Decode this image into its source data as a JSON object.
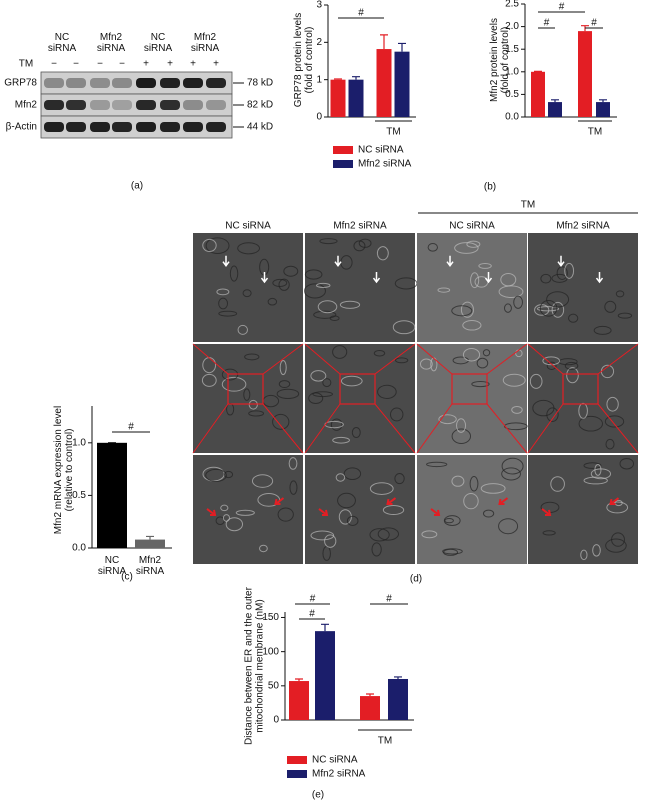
{
  "figure": {
    "panel_labels": [
      "(a)",
      "(b)",
      "(c)",
      "(d)",
      "(e)"
    ]
  },
  "blot": {
    "lanes": [
      "NC siRNA",
      "Mfn2 siRNA",
      "NC siRNA",
      "Mfn2 siRNA"
    ],
    "treatment_label": "TM",
    "treatment": [
      "−",
      "−",
      "−",
      "−",
      "+",
      "+",
      "+",
      "+"
    ],
    "rows": [
      "GRP78",
      "Mfn2",
      "β-Actin"
    ],
    "sizes": [
      "78 kD",
      "82 kD",
      "44 kD"
    ]
  },
  "em": {
    "columns": [
      "NC siRNA",
      "Mfn2 siRNA",
      "NC siRNA",
      "Mfn2 siRNA"
    ],
    "group_label": "TM"
  },
  "chart_data": [
    {
      "type": "bar",
      "ylabel": "GRP78 protein levels (fold of control)",
      "ylim": [
        0,
        3
      ],
      "yticks": [
        0,
        1,
        2,
        3
      ],
      "categories": [
        null,
        "TM"
      ],
      "series": [
        {
          "name": "NC siRNA",
          "color": "#e31e24",
          "values": [
            1.0,
            1.82
          ],
          "errors": [
            0.02,
            0.38
          ]
        },
        {
          "name": "Mfn2 siRNA",
          "color": "#1b1e6b",
          "values": [
            1.0,
            1.75
          ],
          "errors": [
            0.08,
            0.22
          ]
        }
      ],
      "annotations": [
        "#"
      ]
    },
    {
      "type": "bar",
      "ylabel": "Mfn2 protein levels (fold of control)",
      "ylim": [
        0,
        2.5
      ],
      "yticks": [
        {
          "value": 0,
          "label": "0.0"
        },
        0.5,
        {
          "value": 1,
          "label": "1.0"
        },
        1.5,
        {
          "value": 2,
          "label": "2.0"
        },
        2.5
      ],
      "categories": [
        null,
        "TM"
      ],
      "series": [
        {
          "color": "#e31e24",
          "values": [
            1.0,
            1.9
          ],
          "errors": [
            0.01,
            0.12
          ]
        },
        {
          "color": "#1b1e6b",
          "values": [
            0.33,
            0.33
          ],
          "errors": [
            0.05,
            0.05
          ]
        }
      ],
      "annotations": [
        "#",
        "#",
        "#"
      ]
    },
    {
      "type": "bar",
      "ylabel": "Mfn2 mRNA expression level (relative to control)",
      "ylim": [
        0,
        1.35
      ],
      "yticks": [
        {
          "value": 0,
          "label": "0.0"
        },
        0.5,
        {
          "value": 1,
          "label": "1.0"
        }
      ],
      "categories": [
        "NC siRNA",
        "Mfn2 siRNA"
      ],
      "values": [
        1.0,
        0.08
      ],
      "errors": [
        0,
        0.03
      ],
      "colors": [
        "#000000",
        "#666666"
      ],
      "annotations": [
        "#"
      ]
    },
    {
      "type": "bar",
      "ylabel": "Distance between ER and the outer mitochondrial membrane (nM)",
      "ylim": [
        0,
        158
      ],
      "yticks": [
        0,
        50,
        100,
        150
      ],
      "categories": [
        null,
        "TM"
      ],
      "series": [
        {
          "name": "NC siRNA",
          "color": "#e31e24",
          "values": [
            57,
            35
          ],
          "errors": [
            3,
            3
          ]
        },
        {
          "name": "Mfn2 siRNA",
          "color": "#1b1e6b",
          "values": [
            130,
            60
          ],
          "errors": [
            10,
            3
          ]
        }
      ],
      "annotations": [
        "#",
        "#",
        "#"
      ]
    }
  ]
}
